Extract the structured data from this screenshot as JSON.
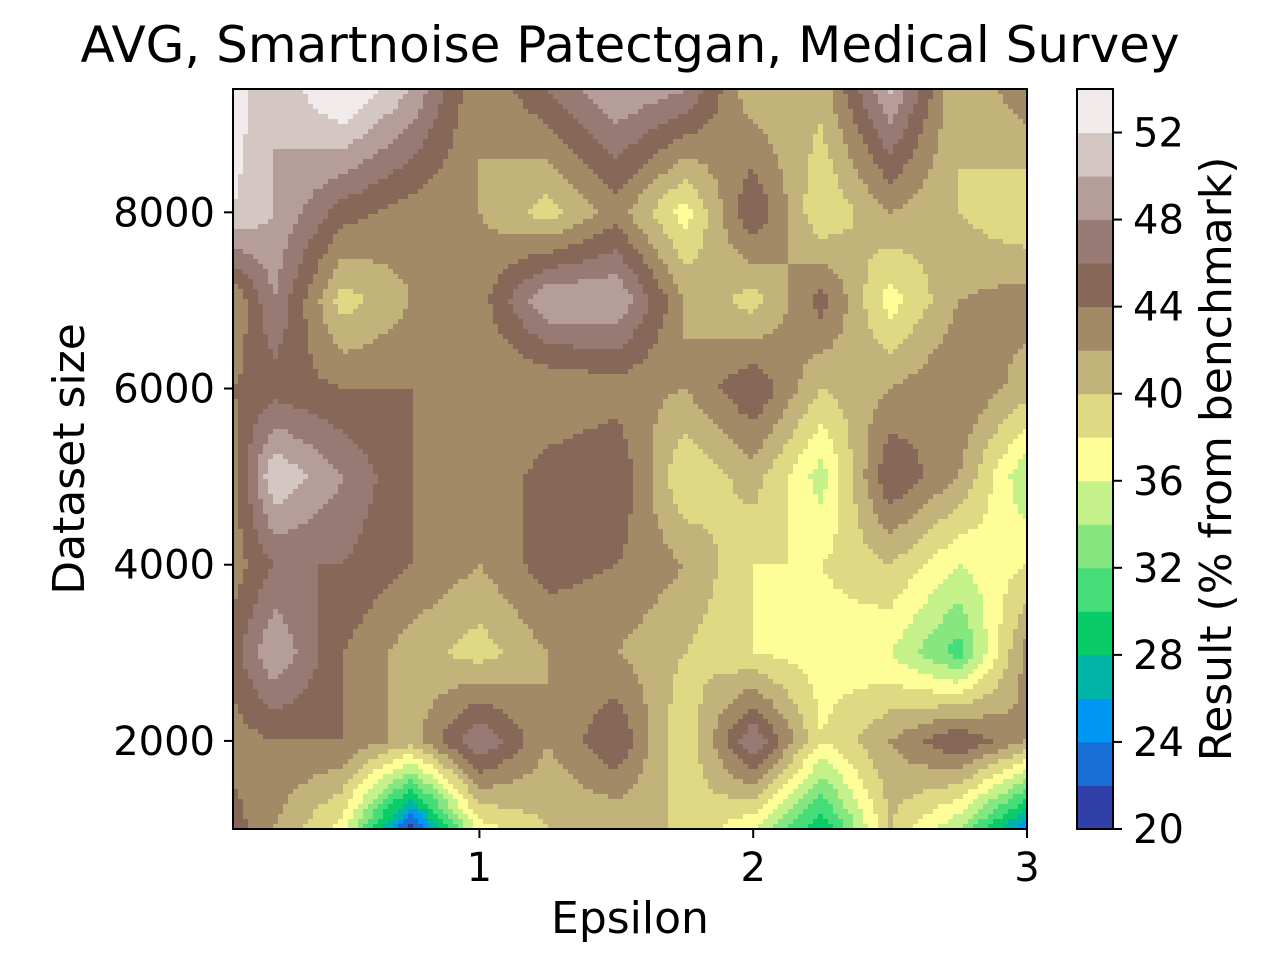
{
  "chart_data": {
    "type": "heatmap",
    "subtype": "filled-contour",
    "title": "AVG, Smartnoise Patectgan, Medical Survey",
    "xlabel": "Epsilon",
    "ylabel": "Dataset size",
    "colorbar_label": "Result (% from benchmark)",
    "colormap": "terrain",
    "xlim": [
      0.1,
      3.0
    ],
    "ylim": [
      1000,
      9400
    ],
    "x_ticks": [
      1,
      2,
      3
    ],
    "x_tick_labels": [
      "1",
      "2",
      "3"
    ],
    "y_ticks": [
      2000,
      4000,
      6000,
      8000
    ],
    "y_tick_labels": [
      "2000",
      "4000",
      "6000",
      "8000"
    ],
    "levels": [
      20,
      22,
      24,
      26,
      28,
      30,
      32,
      34,
      36,
      38,
      40,
      42,
      44,
      46,
      48,
      50,
      52,
      54
    ],
    "colorbar_ticks": [
      20,
      24,
      28,
      32,
      36,
      40,
      44,
      48,
      52
    ],
    "colorbar_tick_labels": [
      "20",
      "24",
      "28",
      "32",
      "36",
      "40",
      "44",
      "48",
      "52"
    ],
    "level_colors": [
      "#3040a8",
      "#1a6fd6",
      "#0096f4",
      "#00b4a8",
      "#09cc68",
      "#45dd77",
      "#86e780",
      "#c5f18a",
      "#fefe98",
      "#e0d983",
      "#c2b37a",
      "#a38a66",
      "#876757",
      "#977a74",
      "#b59e99",
      "#d3c6c3",
      "#f1eceb"
    ],
    "x": [
      0.1,
      0.25,
      0.5,
      0.75,
      1.0,
      1.25,
      1.5,
      1.75,
      2.0,
      2.25,
      2.5,
      2.75,
      3.0
    ],
    "y": [
      1000,
      2000,
      3000,
      4000,
      5000,
      6000,
      7000,
      8000,
      9000
    ],
    "z": [
      [
        45,
        42,
        37,
        21,
        37,
        40,
        40,
        40,
        36,
        28,
        40,
        34,
        24
      ],
      [
        43,
        44,
        44,
        41,
        48,
        42,
        46,
        38,
        48,
        38,
        42,
        46,
        42
      ],
      [
        45,
        50,
        44,
        41,
        39,
        42,
        42,
        40,
        38,
        37,
        36,
        31,
        43
      ],
      [
        43,
        46,
        46,
        44,
        42,
        45,
        44,
        42,
        38,
        38,
        40,
        36,
        38
      ],
      [
        43,
        52,
        48,
        44,
        42,
        45,
        46,
        38,
        41,
        35,
        46,
        42,
        34
      ],
      [
        44,
        45,
        44,
        44,
        42,
        42,
        43,
        42,
        46,
        40,
        42,
        44,
        41
      ],
      [
        42,
        48,
        39,
        42,
        43,
        50,
        50,
        42,
        39,
        45,
        37,
        42,
        43
      ],
      [
        52,
        50,
        45,
        43,
        42,
        39,
        43,
        37,
        46,
        38,
        42,
        40,
        38
      ],
      [
        53,
        50,
        52,
        48,
        42,
        44,
        48,
        45,
        42,
        40,
        48,
        40,
        42
      ]
    ]
  }
}
